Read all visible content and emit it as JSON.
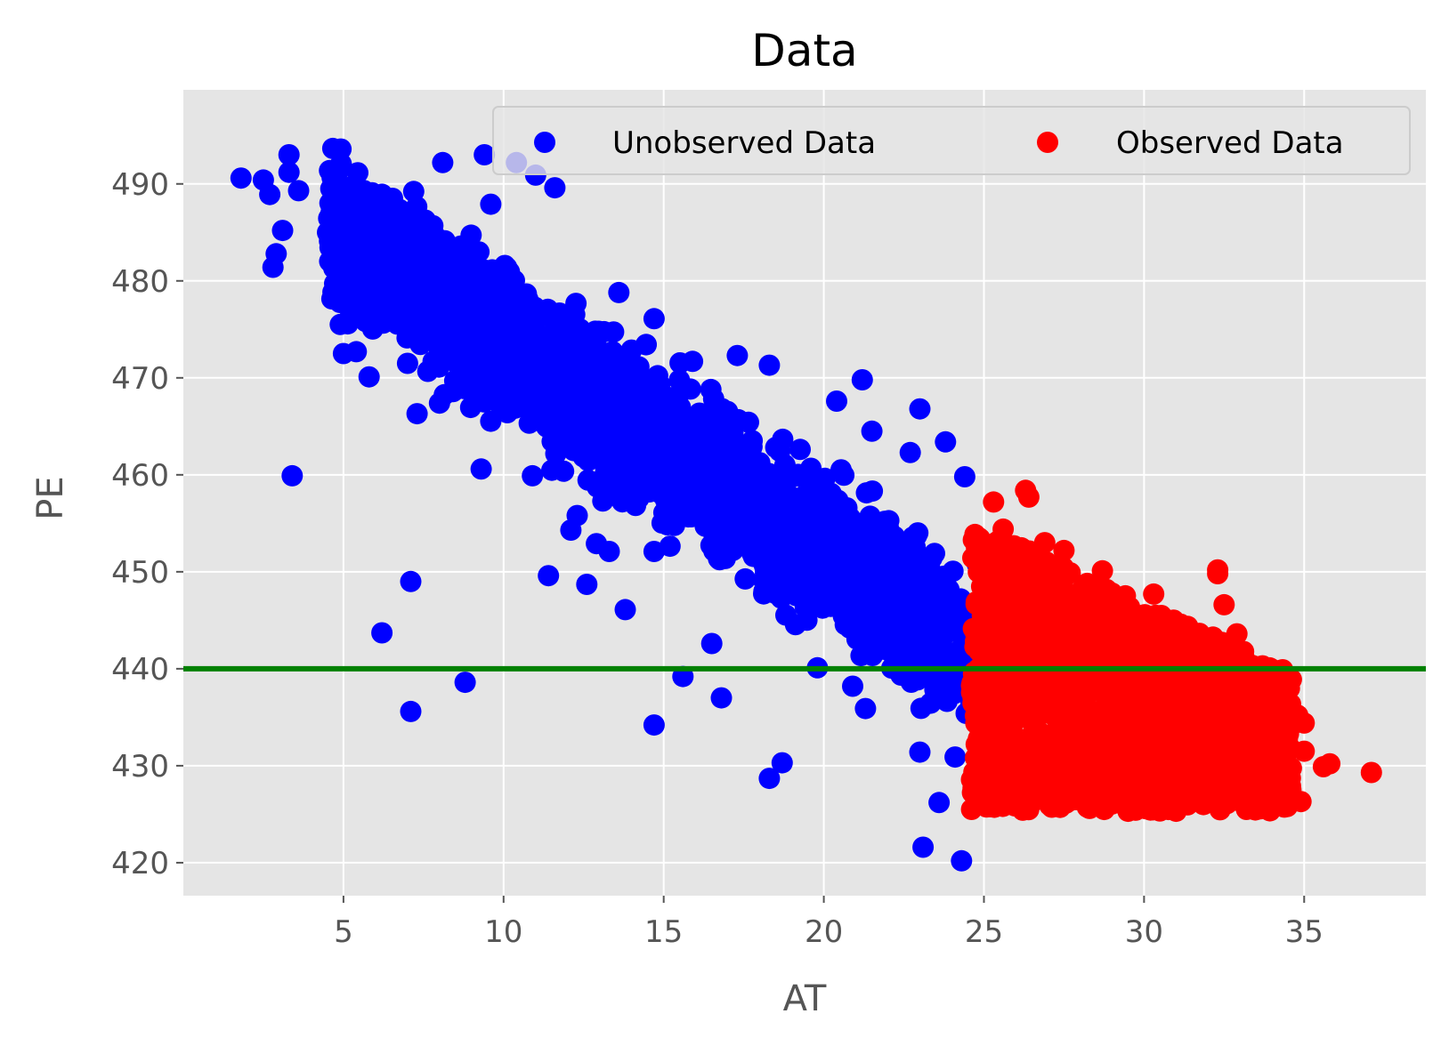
{
  "chart_data": {
    "type": "scatter",
    "title": "Data",
    "xlabel": "AT",
    "ylabel": "PE",
    "xlim": [
      0.0,
      38.8
    ],
    "ylim": [
      416.6,
      499.7
    ],
    "xticks": [
      5,
      10,
      15,
      20,
      25,
      30,
      35
    ],
    "yticks": [
      420,
      430,
      440,
      450,
      460,
      470,
      480,
      490
    ],
    "grid": true,
    "legend": {
      "placement": "top-right",
      "columns": 2
    },
    "hline": {
      "y": 440,
      "color": "#008000"
    },
    "series": [
      {
        "name": "Unobserved Data",
        "color": "#0000ff",
        "band": {
          "x_min": 4.5,
          "x_max": 24.8,
          "y_center_at_xmin": 486,
          "slope": -2.2,
          "half_width": 11,
          "count": 2200
        },
        "points": [
          [
            1.8,
            490.6
          ],
          [
            2.5,
            490.4
          ],
          [
            2.7,
            488.9
          ],
          [
            2.8,
            481.4
          ],
          [
            2.9,
            482.8
          ],
          [
            3.1,
            485.2
          ],
          [
            3.3,
            493.0
          ],
          [
            3.3,
            491.2
          ],
          [
            3.4,
            459.9
          ],
          [
            3.6,
            489.3
          ],
          [
            4.7,
            481.3
          ],
          [
            4.8,
            479.2
          ],
          [
            4.9,
            475.5
          ],
          [
            5.0,
            472.5
          ],
          [
            5.4,
            472.7
          ],
          [
            5.7,
            475.8
          ],
          [
            5.8,
            470.1
          ],
          [
            6.2,
            443.7
          ],
          [
            7.0,
            471.5
          ],
          [
            7.1,
            449.0
          ],
          [
            7.1,
            435.6
          ],
          [
            7.3,
            466.3
          ],
          [
            7.8,
            471.7
          ],
          [
            8.0,
            467.4
          ],
          [
            8.1,
            492.2
          ],
          [
            8.8,
            438.6
          ],
          [
            9.3,
            460.6
          ],
          [
            9.4,
            493.0
          ],
          [
            9.6,
            487.9
          ],
          [
            10.4,
            492.2
          ],
          [
            10.9,
            459.9
          ],
          [
            11.0,
            490.9
          ],
          [
            11.4,
            449.6
          ],
          [
            11.6,
            489.6
          ],
          [
            12.1,
            454.3
          ],
          [
            12.3,
            455.8
          ],
          [
            12.6,
            448.7
          ],
          [
            12.9,
            452.9
          ],
          [
            13.1,
            457.3
          ],
          [
            13.3,
            452.1
          ],
          [
            13.6,
            478.8
          ],
          [
            13.8,
            446.1
          ],
          [
            14.7,
            452.1
          ],
          [
            14.7,
            476.1
          ],
          [
            14.7,
            434.2
          ],
          [
            15.6,
            439.2
          ],
          [
            15.9,
            471.7
          ],
          [
            16.5,
            442.6
          ],
          [
            16.8,
            437.0
          ],
          [
            17.3,
            472.3
          ],
          [
            18.3,
            428.7
          ],
          [
            18.3,
            471.3
          ],
          [
            18.7,
            430.3
          ],
          [
            19.8,
            440.1
          ],
          [
            20.4,
            467.6
          ],
          [
            20.9,
            438.2
          ],
          [
            21.2,
            469.8
          ],
          [
            21.3,
            435.9
          ],
          [
            21.5,
            464.5
          ],
          [
            22.7,
            462.3
          ],
          [
            23.0,
            431.4
          ],
          [
            23.0,
            466.8
          ],
          [
            23.1,
            421.6
          ],
          [
            23.6,
            426.2
          ],
          [
            23.8,
            463.4
          ],
          [
            24.1,
            430.9
          ],
          [
            24.3,
            420.2
          ],
          [
            24.4,
            459.8
          ],
          [
            24.9,
            427.7
          ]
        ]
      },
      {
        "name": "Observed Data",
        "color": "#ff0000",
        "band": {
          "x_min": 24.6,
          "x_max": 34.6,
          "y_top": 455,
          "y_bottom": 425.3,
          "count": 1800
        },
        "points": [
          [
            25.3,
            457.2
          ],
          [
            25.6,
            454.4
          ],
          [
            25.9,
            426.2
          ],
          [
            26.3,
            458.4
          ],
          [
            26.4,
            457.7
          ],
          [
            26.9,
            453.0
          ],
          [
            27.5,
            452.2
          ],
          [
            28.7,
            450.1
          ],
          [
            30.3,
            447.7
          ],
          [
            32.3,
            450.2
          ],
          [
            32.3,
            449.8
          ],
          [
            32.5,
            446.6
          ],
          [
            32.9,
            443.6
          ],
          [
            33.7,
            440.3
          ],
          [
            34.6,
            438.9
          ],
          [
            34.8,
            435.2
          ],
          [
            35.0,
            434.4
          ],
          [
            35.0,
            431.5
          ],
          [
            34.9,
            426.3
          ],
          [
            35.6,
            429.9
          ],
          [
            35.8,
            430.2
          ],
          [
            37.1,
            429.3
          ],
          [
            33.2,
            425.5
          ],
          [
            31.0,
            425.3
          ],
          [
            29.5,
            425.3
          ],
          [
            28.3,
            425.6
          ]
        ]
      }
    ]
  }
}
